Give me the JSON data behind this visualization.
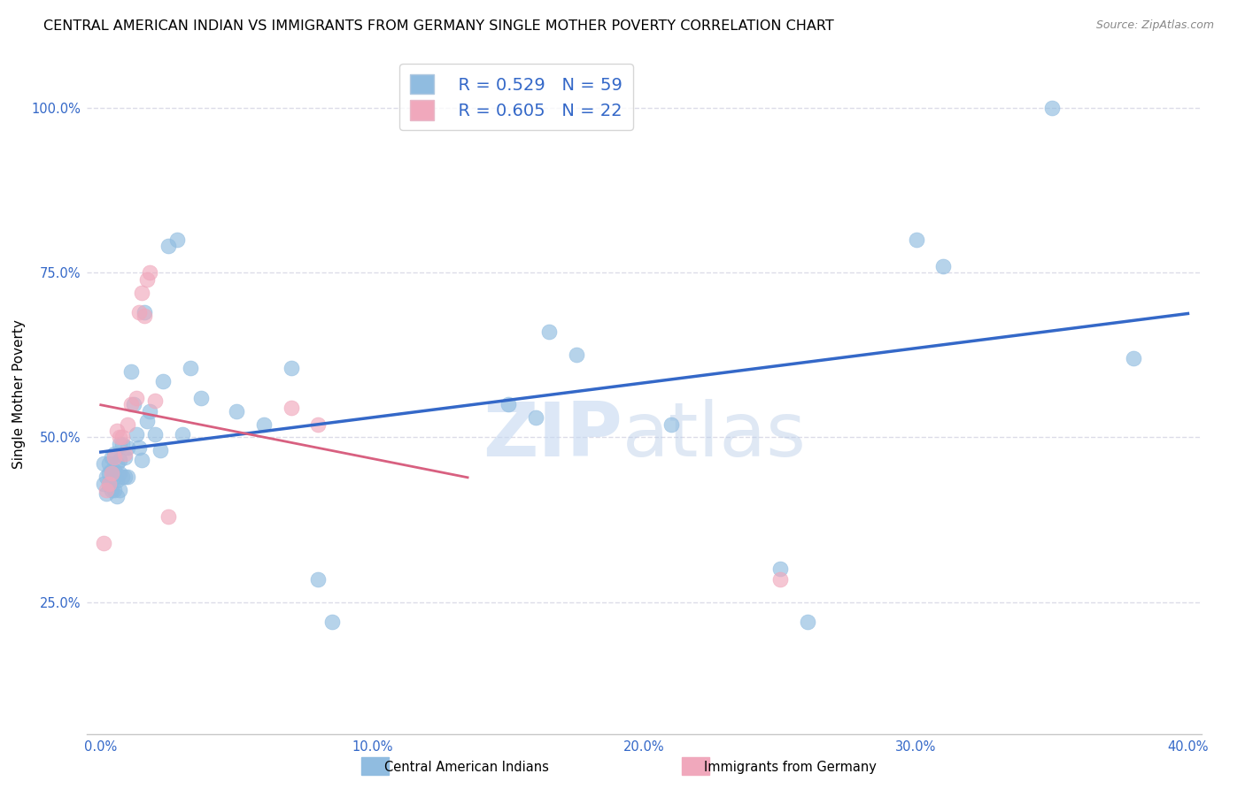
{
  "title": "CENTRAL AMERICAN INDIAN VS IMMIGRANTS FROM GERMANY SINGLE MOTHER POVERTY CORRELATION CHART",
  "source": "Source: ZipAtlas.com",
  "ylabel": "Single Mother Poverty",
  "xlim": [
    -0.005,
    0.405
  ],
  "ylim": [
    0.05,
    1.08
  ],
  "blue_color": "#90bce0",
  "pink_color": "#f0a8bc",
  "blue_line_color": "#3468c8",
  "pink_line_color": "#d86080",
  "legend_R1": "R = 0.529",
  "legend_N1": "N = 59",
  "legend_R2": "R = 0.605",
  "legend_N2": "N = 22",
  "watermark_part1": "ZIP",
  "watermark_part2": "atlas",
  "blue_x": [
    0.001,
    0.001,
    0.002,
    0.002,
    0.003,
    0.003,
    0.003,
    0.004,
    0.004,
    0.004,
    0.005,
    0.005,
    0.005,
    0.005,
    0.006,
    0.006,
    0.006,
    0.007,
    0.007,
    0.007,
    0.007,
    0.008,
    0.008,
    0.009,
    0.009,
    0.01,
    0.01,
    0.011,
    0.012,
    0.013,
    0.014,
    0.015,
    0.016,
    0.017,
    0.018,
    0.02,
    0.022,
    0.023,
    0.025,
    0.028,
    0.03,
    0.033,
    0.037,
    0.05,
    0.06,
    0.07,
    0.08,
    0.085,
    0.15,
    0.16,
    0.165,
    0.175,
    0.21,
    0.25,
    0.26,
    0.3,
    0.31,
    0.35,
    0.38
  ],
  "blue_y": [
    0.43,
    0.46,
    0.415,
    0.44,
    0.43,
    0.445,
    0.46,
    0.42,
    0.45,
    0.47,
    0.42,
    0.44,
    0.45,
    0.475,
    0.41,
    0.435,
    0.46,
    0.42,
    0.445,
    0.465,
    0.49,
    0.44,
    0.49,
    0.44,
    0.47,
    0.44,
    0.485,
    0.6,
    0.55,
    0.505,
    0.485,
    0.465,
    0.69,
    0.525,
    0.54,
    0.505,
    0.48,
    0.585,
    0.79,
    0.8,
    0.505,
    0.605,
    0.56,
    0.54,
    0.52,
    0.605,
    0.285,
    0.22,
    0.55,
    0.53,
    0.66,
    0.625,
    0.52,
    0.3,
    0.22,
    0.8,
    0.76,
    1.0,
    0.62
  ],
  "pink_x": [
    0.001,
    0.002,
    0.003,
    0.004,
    0.005,
    0.006,
    0.007,
    0.008,
    0.009,
    0.01,
    0.011,
    0.013,
    0.014,
    0.015,
    0.016,
    0.017,
    0.018,
    0.02,
    0.025,
    0.07,
    0.08,
    0.25
  ],
  "pink_y": [
    0.34,
    0.42,
    0.43,
    0.445,
    0.47,
    0.51,
    0.5,
    0.5,
    0.475,
    0.52,
    0.55,
    0.56,
    0.69,
    0.72,
    0.685,
    0.74,
    0.75,
    0.555,
    0.38,
    0.545,
    0.52,
    0.285
  ],
  "xlabel_tick_vals": [
    0.0,
    0.1,
    0.2,
    0.3,
    0.4
  ],
  "xlabel_ticks": [
    "0.0%",
    "10.0%",
    "20.0%",
    "30.0%",
    "40.0%"
  ],
  "ylabel_tick_vals": [
    0.25,
    0.5,
    0.75,
    1.0
  ],
  "ylabel_ticks": [
    "25.0%",
    "50.0%",
    "75.0%",
    "100.0%"
  ],
  "grid_color": "#dcdce8",
  "title_fontsize": 11.5,
  "tick_label_color": "#3468c8",
  "tick_fontsize": 10.5,
  "legend_fontsize": 14,
  "blue_regression_x0": 0.0,
  "blue_regression_x1": 0.4,
  "pink_regression_x0": 0.0,
  "pink_regression_x1": 0.135
}
